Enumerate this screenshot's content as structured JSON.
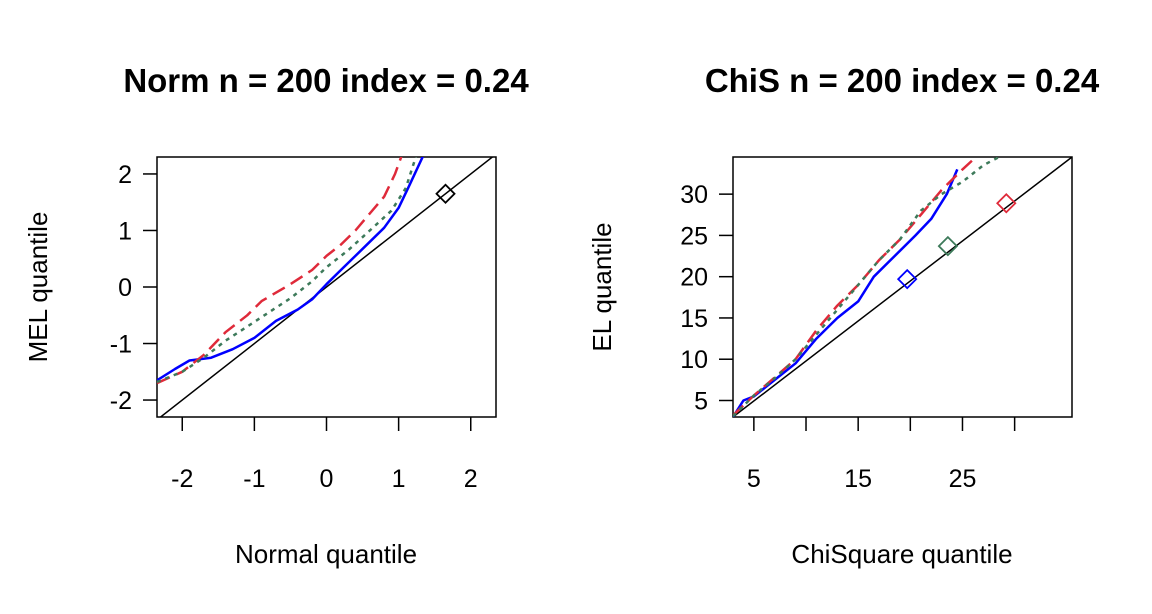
{
  "chart_data": [
    {
      "type": "line",
      "title": "Norm n = 200 index = 0.24",
      "xlabel": "Normal quantile",
      "ylabel": "MEL quantile",
      "xlim": [
        -2.35,
        2.35
      ],
      "ylim": [
        -2.3,
        2.3
      ],
      "xticks": [
        -2,
        -1,
        0,
        1,
        2
      ],
      "yticks": [
        -2,
        -1,
        0,
        1,
        2
      ],
      "xtick_labels": [
        "-2",
        "-1",
        "0",
        "1",
        "2"
      ],
      "ytick_labels": [
        "-2",
        "-1",
        "0",
        "1",
        "2"
      ],
      "grid": false,
      "reference_line": [
        [
          -2.35,
          -2.35
        ],
        [
          2.35,
          2.35
        ]
      ],
      "series": [
        {
          "color": "#0000ff",
          "dash": "solid",
          "points": [
            [
              -2.35,
              -1.65
            ],
            [
              -2.1,
              -1.45
            ],
            [
              -1.9,
              -1.3
            ],
            [
              -1.6,
              -1.25
            ],
            [
              -1.3,
              -1.1
            ],
            [
              -1.0,
              -0.9
            ],
            [
              -0.7,
              -0.6
            ],
            [
              -0.4,
              -0.4
            ],
            [
              -0.2,
              -0.22
            ],
            [
              0.0,
              0.05
            ],
            [
              0.2,
              0.3
            ],
            [
              0.4,
              0.55
            ],
            [
              0.6,
              0.8
            ],
            [
              0.8,
              1.05
            ],
            [
              1.0,
              1.4
            ],
            [
              1.15,
              1.8
            ],
            [
              1.35,
              2.35
            ]
          ]
        },
        {
          "color": "#df2a3a",
          "dash": "longdash",
          "points": [
            [
              -2.35,
              -1.7
            ],
            [
              -2.0,
              -1.5
            ],
            [
              -1.7,
              -1.2
            ],
            [
              -1.4,
              -0.8
            ],
            [
              -1.1,
              -0.5
            ],
            [
              -0.9,
              -0.25
            ],
            [
              -0.5,
              0.05
            ],
            [
              -0.2,
              0.3
            ],
            [
              0.0,
              0.55
            ],
            [
              0.2,
              0.75
            ],
            [
              0.4,
              1.0
            ],
            [
              0.6,
              1.3
            ],
            [
              0.8,
              1.6
            ],
            [
              0.95,
              2.0
            ],
            [
              1.05,
              2.35
            ]
          ]
        },
        {
          "color": "#3d7a5a",
          "dash": "dotted",
          "points": [
            [
              -2.35,
              -1.68
            ],
            [
              -2.0,
              -1.5
            ],
            [
              -1.7,
              -1.25
            ],
            [
              -1.4,
              -0.95
            ],
            [
              -1.1,
              -0.7
            ],
            [
              -0.8,
              -0.45
            ],
            [
              -0.5,
              -0.2
            ],
            [
              -0.2,
              0.1
            ],
            [
              0.0,
              0.35
            ],
            [
              0.3,
              0.65
            ],
            [
              0.6,
              1.0
            ],
            [
              0.9,
              1.35
            ],
            [
              1.1,
              1.75
            ],
            [
              1.25,
              2.35
            ]
          ]
        }
      ],
      "markers": [
        {
          "x": 1.65,
          "y": 1.65,
          "color": "#000000",
          "shape": "diamond"
        }
      ]
    },
    {
      "type": "line",
      "title": "ChiS n = 200 index = 0.24",
      "xlabel": "ChiSquare quantile",
      "ylabel": "EL quantile",
      "xlim": [
        3.0,
        35.5
      ],
      "ylim": [
        3.0,
        34.5
      ],
      "xticks": [
        5,
        10,
        15,
        20,
        25,
        30
      ],
      "yticks": [
        5,
        10,
        15,
        20,
        25,
        30
      ],
      "xtick_labels": [
        "5",
        "",
        "15",
        "",
        "25",
        ""
      ],
      "ytick_labels": [
        "5",
        "10",
        "15",
        "20",
        "25",
        "30"
      ],
      "grid": false,
      "reference_line": [
        [
          3.0,
          3.0
        ],
        [
          35.5,
          34.5
        ]
      ],
      "series": [
        {
          "color": "#0000ff",
          "dash": "solid",
          "points": [
            [
              3.0,
              3.0
            ],
            [
              4.0,
              5.0
            ],
            [
              5.0,
              5.5
            ],
            [
              7.0,
              7.5
            ],
            [
              9.0,
              9.5
            ],
            [
              11.0,
              12.5
            ],
            [
              13.0,
              15.0
            ],
            [
              15.0,
              17.0
            ],
            [
              16.5,
              20.0
            ],
            [
              18.5,
              22.5
            ],
            [
              20.5,
              25.0
            ],
            [
              22.0,
              27.0
            ],
            [
              23.5,
              30.0
            ],
            [
              24.5,
              33.0
            ]
          ]
        },
        {
          "color": "#df2a3a",
          "dash": "longdash",
          "points": [
            [
              3.0,
              3.2
            ],
            [
              5.0,
              5.6
            ],
            [
              7.0,
              7.8
            ],
            [
              9.0,
              10.0
            ],
            [
              11.0,
              13.5
            ],
            [
              13.0,
              16.5
            ],
            [
              15.0,
              19.0
            ],
            [
              17.0,
              22.0
            ],
            [
              19.0,
              24.5
            ],
            [
              21.0,
              27.5
            ],
            [
              23.0,
              30.5
            ],
            [
              25.0,
              33.0
            ],
            [
              26.3,
              34.5
            ]
          ]
        },
        {
          "color": "#3d7a5a",
          "dash": "dotted",
          "points": [
            [
              3.0,
              3.1
            ],
            [
              5.0,
              5.6
            ],
            [
              7.0,
              7.7
            ],
            [
              9.0,
              10.0
            ],
            [
              11.0,
              13.0
            ],
            [
              13.0,
              16.0
            ],
            [
              15.0,
              19.0
            ],
            [
              17.0,
              22.0
            ],
            [
              19.0,
              24.5
            ],
            [
              21.0,
              28.0
            ],
            [
              23.0,
              30.0
            ],
            [
              25.0,
              31.5
            ],
            [
              27.0,
              33.5
            ],
            [
              28.5,
              34.5
            ]
          ]
        }
      ],
      "markers": [
        {
          "x": 19.7,
          "y": 19.7,
          "color": "#0000ff",
          "shape": "diamond"
        },
        {
          "x": 23.6,
          "y": 23.7,
          "color": "#3d7a5a",
          "shape": "diamond"
        },
        {
          "x": 29.2,
          "y": 28.9,
          "color": "#df2a3a",
          "shape": "diamond"
        }
      ]
    }
  ]
}
